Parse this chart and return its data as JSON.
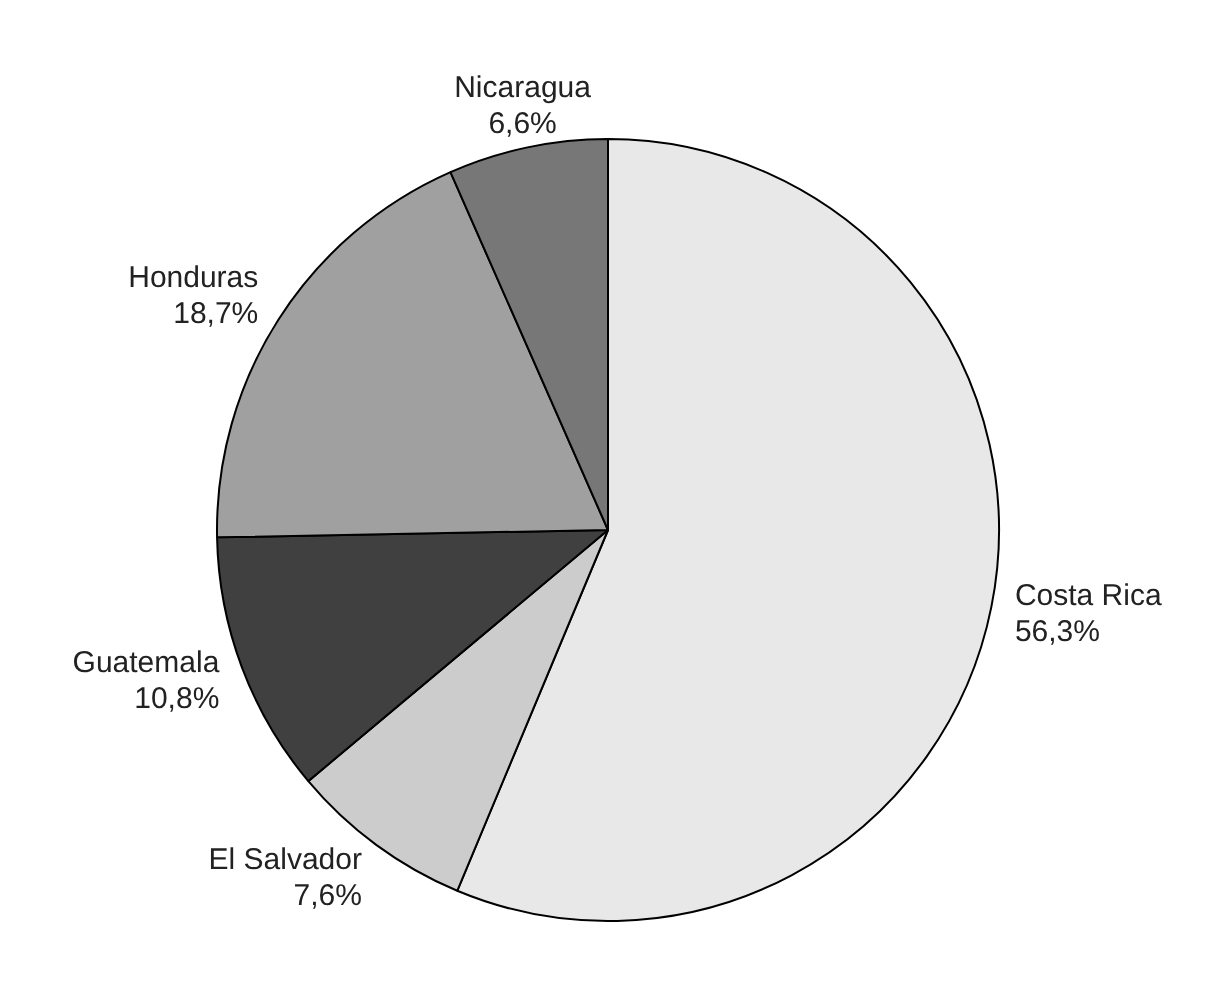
{
  "chart_data": {
    "type": "pie",
    "categories": [
      "Costa Rica",
      "El Salvador",
      "Guatemala",
      "Honduras",
      "Nicaragua"
    ],
    "values": [
      56.3,
      7.6,
      10.8,
      18.7,
      6.6
    ],
    "colors": [
      "#e8e8e8",
      "#cccccc",
      "#404040",
      "#a0a0a0",
      "#777777"
    ],
    "value_labels": [
      "56,3%",
      "7,6%",
      "10,8%",
      "18,7%",
      "6,6%"
    ],
    "legend": false
  }
}
